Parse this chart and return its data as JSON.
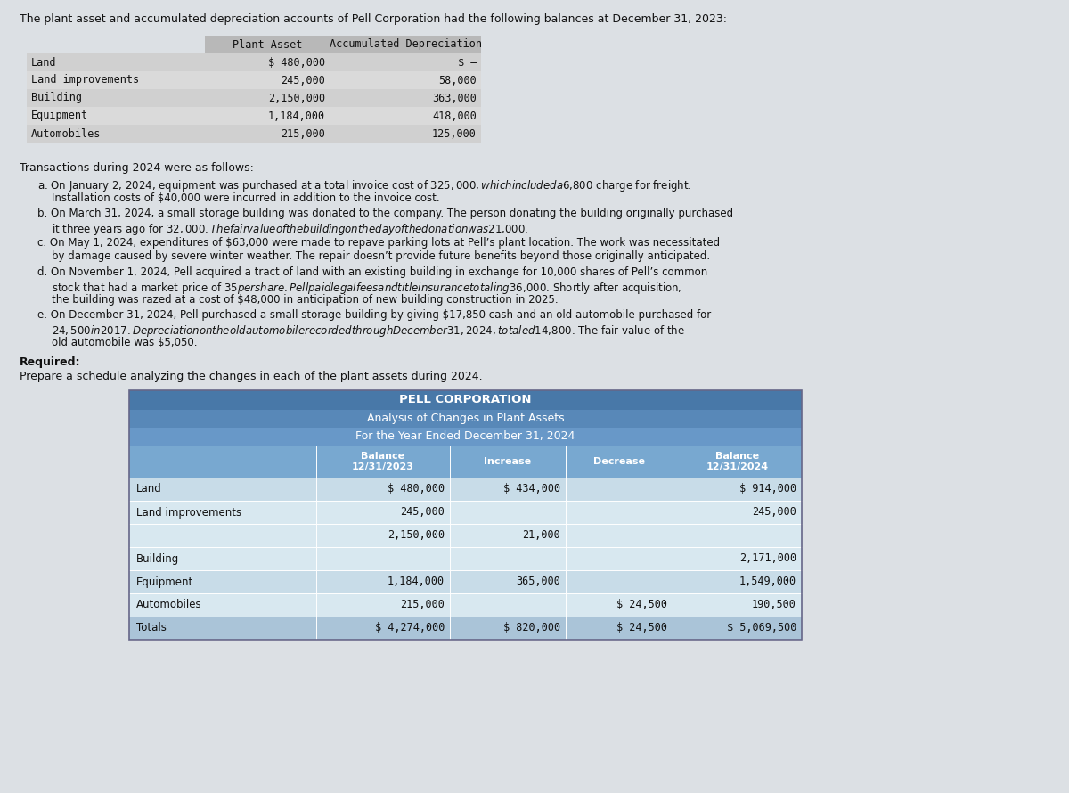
{
  "bg_color": "#dce0e4",
  "intro_text": "The plant asset and accumulated depreciation accounts of Pell Corporation had the following balances at December 31, 2023:",
  "top_table_header": [
    "Plant Asset",
    "Accumulated Depreciation"
  ],
  "top_table_rows": [
    [
      "Land",
      "$ 480,000",
      "$ –"
    ],
    [
      "Land improvements",
      "245,000",
      "58,000"
    ],
    [
      "Building",
      "2,150,000",
      "363,000"
    ],
    [
      "Equipment",
      "1,184,000",
      "418,000"
    ],
    [
      "Automobiles",
      "215,000",
      "125,000"
    ]
  ],
  "top_table_header_bg": "#b8b8b8",
  "top_table_row_bgs": [
    "#d0d0d0",
    "#dadada"
  ],
  "transactions_title": "Transactions during 2024 were as follows:",
  "transactions": [
    [
      "a.",
      "On January 2, 2024, equipment was purchased at a total invoice cost of $325,000, which included a $6,800 charge for freight.",
      "Installation costs of $40,000 were incurred in addition to the invoice cost."
    ],
    [
      "b.",
      "On March 31, 2024, a small storage building was donated to the company. The person donating the building originally purchased",
      "it three years ago for $32,000. The fair value of the building on the day of the donation was $21,000."
    ],
    [
      "c.",
      "On May 1, 2024, expenditures of $63,000 were made to repave parking lots at Pell’s plant location. The work was necessitated",
      "by damage caused by severe winter weather. The repair doesn’t provide future benefits beyond those originally anticipated."
    ],
    [
      "d.",
      "On November 1, 2024, Pell acquired a tract of land with an existing building in exchange for 10,000 shares of Pell’s common",
      "stock that had a market price of $35 per share. Pell paid legal fees and title insurance totaling $36,000. Shortly after acquisition,",
      "the building was razed at a cost of $48,000 in anticipation of new building construction in 2025."
    ],
    [
      "e.",
      "On December 31, 2024, Pell purchased a small storage building by giving $17,850 cash and an old automobile purchased for",
      "$24,500 in 2017. Depreciation on the old automobile recorded through December 31, 2024, totaled $14,800. The fair value of the",
      "old automobile was $5,050."
    ]
  ],
  "required_label": "Required:",
  "required_text": "Prepare a schedule analyzing the changes in each of the plant assets during 2024.",
  "table_title1": "PELL CORPORATION",
  "table_title2": "Analysis of Changes in Plant Assets",
  "table_title3": "For the Year Ended December 31, 2024",
  "table_col_headers": [
    "Balance\n12/31/2023",
    "Increase",
    "Decrease",
    "Balance\n12/31/2024"
  ],
  "table_row_labels": [
    "Land",
    "Land improvements",
    "",
    "Building",
    "Equipment",
    "Automobiles",
    "Totals"
  ],
  "table_col1": [
    "$ 480,000",
    "245,000",
    "2,150,000",
    "",
    "1,184,000",
    "215,000",
    "$ 4,274,000"
  ],
  "table_col2": [
    "$ 434,000",
    "",
    "21,000",
    "",
    "365,000",
    "",
    "$ 820,000"
  ],
  "table_col3": [
    "",
    "",
    "",
    "",
    "",
    "$ 24,500",
    "$ 24,500"
  ],
  "table_col4": [
    "$ 914,000",
    "245,000",
    "",
    "2,171,000",
    "1,549,000",
    "190,500",
    "$ 5,069,500"
  ],
  "table_title_bg1": "#4878a8",
  "table_title_bg2": "#5888b8",
  "table_title_bg3": "#6898c8",
  "table_col_header_bg": "#78a8d0",
  "table_data_bg1": "#c8dce8",
  "table_data_bg2": "#d8e8f0",
  "table_totals_bg": "#aac4d8",
  "table_border_color": "#666688"
}
